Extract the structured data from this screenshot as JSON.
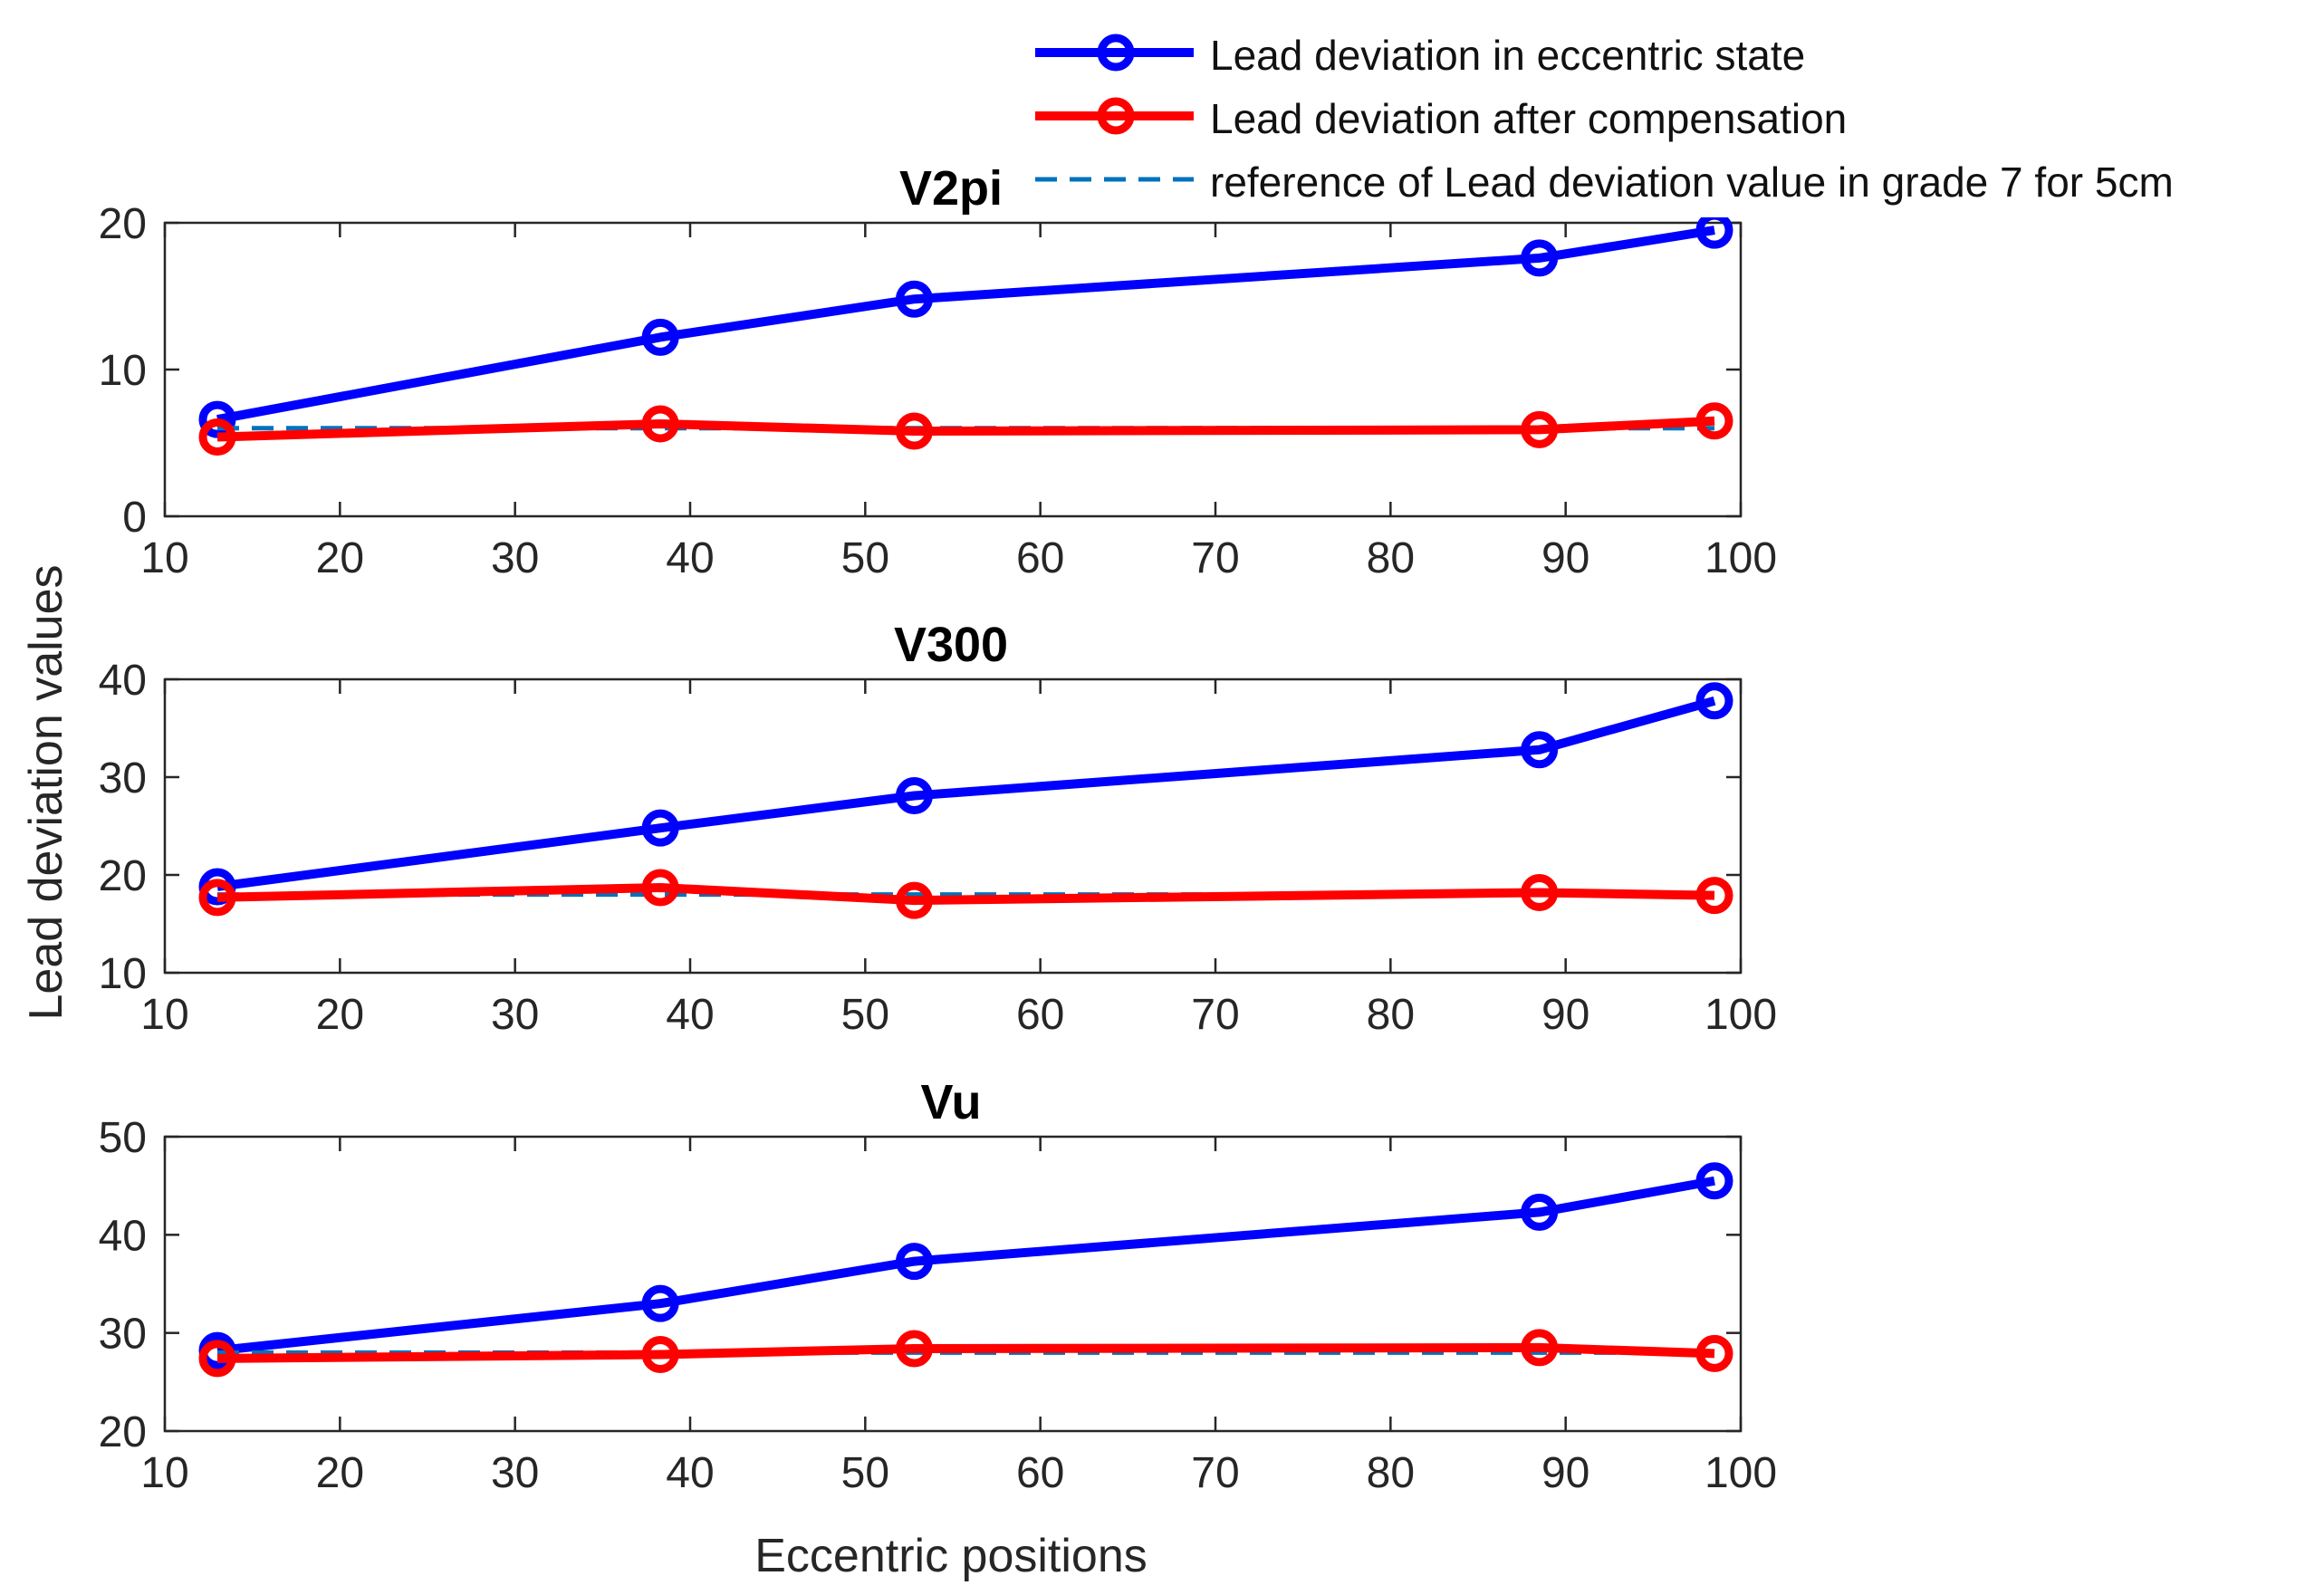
{
  "figure": {
    "ylabel": "Lead deviation values",
    "xlabel": "Eccentric positions"
  },
  "legend": {
    "entries": [
      {
        "label": "Lead deviation in eccentric state",
        "color": "#0000ff",
        "style": "solid-marker"
      },
      {
        "label": "Lead deviation after compensation",
        "color": "#ff0000",
        "style": "solid-marker"
      },
      {
        "label": "reference of Lead deviation value in grade 7 for 5cm",
        "color": "#0072bd",
        "style": "dashed"
      }
    ]
  },
  "colors": {
    "eccentric": "#0000ff",
    "compensated": "#ff0000",
    "reference": "#0072bd",
    "axis": "#262626",
    "tick_text": "#262626"
  },
  "chart_data": [
    {
      "type": "line",
      "title": "V2pi",
      "x": [
        13,
        38.3,
        52.8,
        88.5,
        98.5
      ],
      "xlim": [
        10,
        100
      ],
      "ylim": [
        0,
        20
      ],
      "xticks": [
        10,
        20,
        30,
        40,
        50,
        60,
        70,
        80,
        90,
        100
      ],
      "yticks": [
        0,
        10,
        20
      ],
      "series": [
        {
          "name": "Lead deviation in eccentric state",
          "values": [
            6.6,
            12.2,
            14.8,
            17.6,
            19.5
          ]
        },
        {
          "name": "Lead deviation after compensation",
          "values": [
            5.4,
            6.3,
            5.8,
            5.9,
            6.5
          ]
        },
        {
          "name": "reference of Lead deviation value in grade 7 for 5cm",
          "values": [
            6,
            6,
            6,
            6,
            6
          ]
        }
      ]
    },
    {
      "type": "line",
      "title": "V300",
      "x": [
        13,
        38.3,
        52.8,
        88.5,
        98.5
      ],
      "xlim": [
        10,
        100
      ],
      "ylim": [
        10,
        40
      ],
      "xticks": [
        10,
        20,
        30,
        40,
        50,
        60,
        70,
        80,
        90,
        100
      ],
      "yticks": [
        10,
        20,
        30,
        40
      ],
      "series": [
        {
          "name": "Lead deviation in eccentric state",
          "values": [
            18.8,
            24.8,
            28.1,
            32.8,
            37.8
          ]
        },
        {
          "name": "Lead deviation after compensation",
          "values": [
            17.7,
            18.7,
            17.4,
            18.2,
            17.9
          ]
        },
        {
          "name": "reference of Lead deviation value in grade 7 for 5cm",
          "values": [
            18,
            18,
            18,
            18,
            18
          ]
        }
      ]
    },
    {
      "type": "line",
      "title": "Vu",
      "x": [
        13,
        38.3,
        52.8,
        88.5,
        98.5
      ],
      "xlim": [
        10,
        100
      ],
      "ylim": [
        20,
        50
      ],
      "xticks": [
        10,
        20,
        30,
        40,
        50,
        60,
        70,
        80,
        90,
        100
      ],
      "yticks": [
        20,
        30,
        40,
        50
      ],
      "series": [
        {
          "name": "Lead deviation in eccentric state",
          "values": [
            28.2,
            33.0,
            37.3,
            42.3,
            45.5
          ]
        },
        {
          "name": "Lead deviation after compensation",
          "values": [
            27.4,
            27.8,
            28.4,
            28.5,
            27.9
          ]
        },
        {
          "name": "reference of Lead deviation value in grade 7 for 5cm",
          "values": [
            28,
            28,
            28,
            28,
            28
          ]
        }
      ]
    }
  ]
}
